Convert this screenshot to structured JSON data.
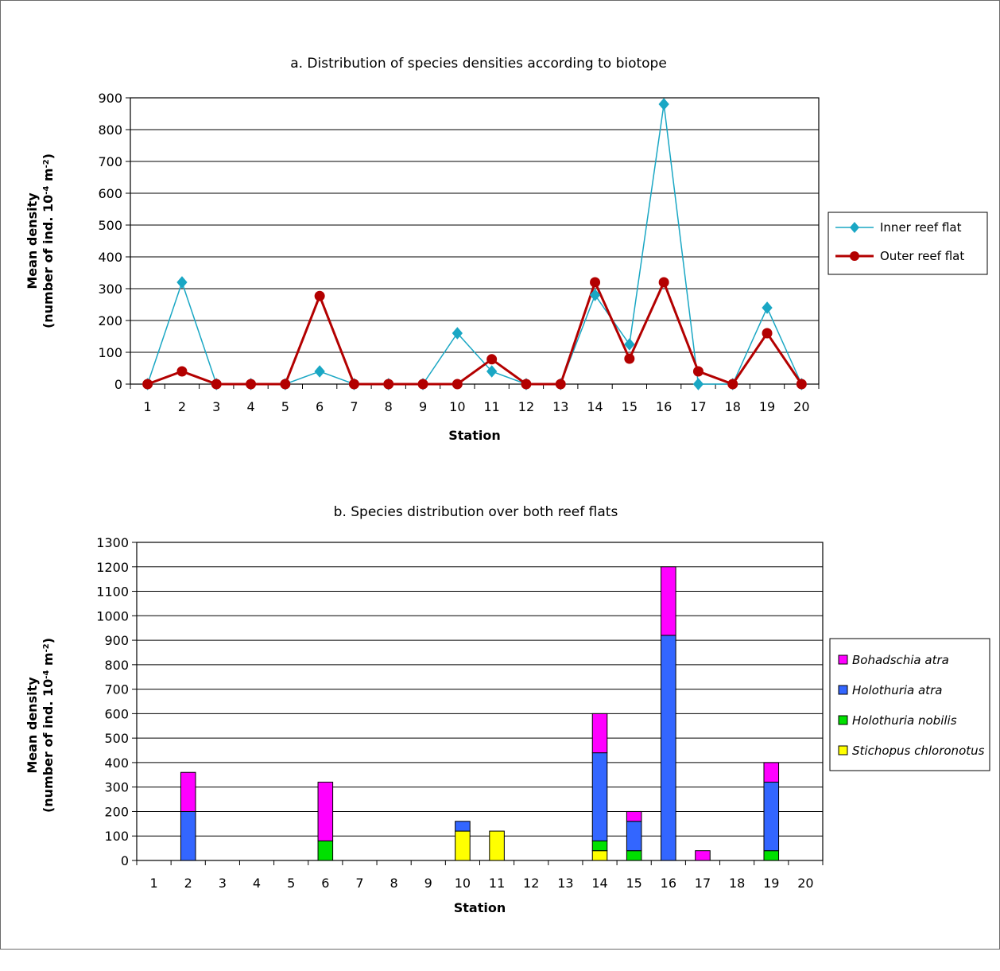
{
  "chart_data": [
    {
      "type": "line",
      "title": "a. Distribution of species densities according to biotope",
      "xlabel": "Station",
      "ylabel_line1": "Mean density",
      "ylabel_line2": "(number of ind. 10",
      "ylabel_sup": "-4",
      "ylabel_tail": " m",
      "ylabel_sup2": "-2",
      "ylabel_end": ")",
      "ylim": [
        0,
        900
      ],
      "yticks": [
        "0",
        "100",
        "200",
        "300",
        "400",
        "500",
        "600",
        "700",
        "800",
        "900"
      ],
      "categories": [
        "1",
        "2",
        "3",
        "4",
        "5",
        "6",
        "7",
        "8",
        "9",
        "10",
        "11",
        "12",
        "13",
        "14",
        "15",
        "16",
        "17",
        "18",
        "19",
        "20"
      ],
      "grid": true,
      "legend_position": "right",
      "series": [
        {
          "name": "Inner reef flat",
          "color": "#1aa7c4",
          "marker": "diamond",
          "values": [
            0,
            320,
            0,
            0,
            0,
            40,
            0,
            0,
            0,
            160,
            40,
            0,
            0,
            280,
            125,
            880,
            0,
            0,
            240,
            0
          ]
        },
        {
          "name": "Outer reef flat",
          "color": "#b30000",
          "marker": "circle",
          "values": [
            0,
            40,
            0,
            0,
            0,
            277,
            0,
            0,
            0,
            0,
            78,
            0,
            0,
            320,
            80,
            320,
            40,
            0,
            160,
            0
          ]
        }
      ]
    },
    {
      "type": "bar",
      "stacked": true,
      "title": "b. Species distribution over both reef flats",
      "xlabel": "Station",
      "ylabel_line1": "Mean density",
      "ylabel_line2": "(number of ind. 10",
      "ylabel_sup": "-4",
      "ylabel_tail": " m",
      "ylabel_sup2": "-2",
      "ylabel_end": ")",
      "ylim": [
        0,
        1300
      ],
      "yticks": [
        "0",
        "100",
        "200",
        "300",
        "400",
        "500",
        "600",
        "700",
        "800",
        "900",
        "1000",
        "1100",
        "1200",
        "1300"
      ],
      "categories": [
        "1",
        "2",
        "3",
        "4",
        "5",
        "6",
        "7",
        "8",
        "9",
        "10",
        "11",
        "12",
        "13",
        "14",
        "15",
        "16",
        "17",
        "18",
        "19",
        "20"
      ],
      "grid": true,
      "legend_position": "right",
      "series": [
        {
          "name": "Stichopus chloronotus",
          "color": "#ffff00",
          "values": [
            0,
            0,
            0,
            0,
            0,
            0,
            0,
            0,
            0,
            120,
            120,
            0,
            0,
            40,
            0,
            0,
            0,
            0,
            0,
            0
          ]
        },
        {
          "name": "Holothuria nobilis",
          "color": "#00e000",
          "values": [
            0,
            0,
            0,
            0,
            0,
            80,
            0,
            0,
            0,
            0,
            0,
            0,
            0,
            40,
            40,
            0,
            0,
            0,
            40,
            0
          ]
        },
        {
          "name": "Holothuria atra",
          "color": "#3366ff",
          "values": [
            0,
            200,
            0,
            0,
            0,
            0,
            0,
            0,
            0,
            40,
            0,
            0,
            0,
            360,
            120,
            920,
            0,
            0,
            280,
            0
          ]
        },
        {
          "name": "Bohadschia atra",
          "color": "#ff00ff",
          "values": [
            0,
            160,
            0,
            0,
            0,
            240,
            0,
            0,
            0,
            0,
            0,
            0,
            0,
            160,
            40,
            280,
            40,
            0,
            80,
            0
          ]
        }
      ]
    }
  ]
}
